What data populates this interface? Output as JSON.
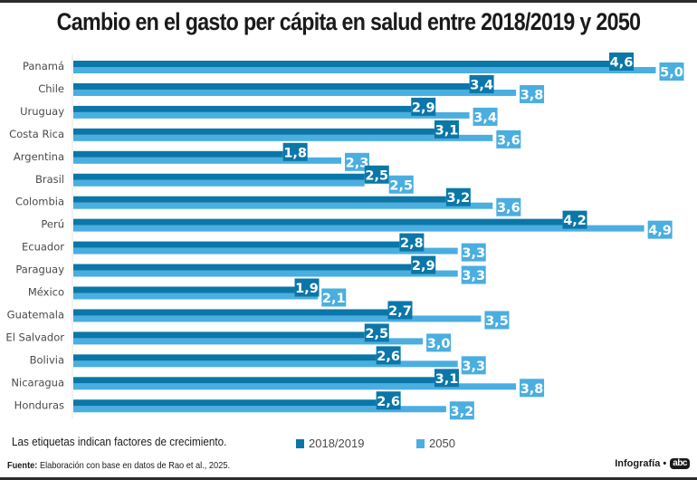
{
  "chart_data": {
    "type": "bar",
    "orientation": "horizontal",
    "title": "Cambio en el gasto per cápita en salud entre 2018/2019 y 2050",
    "categories": [
      "Panamá",
      "Chile",
      "Uruguay",
      "Costa Rica",
      "Argentina",
      "Brasil",
      "Colombia",
      "Perú",
      "Ecuador",
      "Paraguay",
      "México",
      "Guatemala",
      "El Salvador",
      "Bolivia",
      "Nicaragua",
      "Honduras"
    ],
    "series": [
      {
        "name": "2018/2019",
        "color": "#0a77a8",
        "values": [
          4.6,
          3.4,
          2.9,
          3.1,
          1.8,
          2.5,
          3.2,
          4.2,
          2.8,
          2.9,
          1.9,
          2.7,
          2.5,
          2.6,
          3.1,
          2.6
        ],
        "labels": [
          "4,6",
          "3,4",
          "2,9",
          "3,1",
          "1,8",
          "2,5",
          "3,2",
          "4,2",
          "2,8",
          "2,9",
          "1,9",
          "2,7",
          "2,5",
          "2,6",
          "3,1",
          "2,6"
        ]
      },
      {
        "name": "2050",
        "color": "#4aaee0",
        "values": [
          5.0,
          3.8,
          3.4,
          3.6,
          2.3,
          2.5,
          3.6,
          4.9,
          3.3,
          3.3,
          2.1,
          3.5,
          3.0,
          3.3,
          3.8,
          3.2
        ],
        "labels": [
          "5,0",
          "3,8",
          "3,4",
          "3,6",
          "2,3",
          "2,5",
          "3,6",
          "4,9",
          "3,3",
          "3,3",
          "2,1",
          "3,5",
          "3,0",
          "3,3",
          "3,8",
          "3,2"
        ]
      }
    ],
    "xlabel": "",
    "ylabel": "",
    "xlim": [
      0,
      5.0
    ],
    "grid": false,
    "legend": {
      "placement": "bottom",
      "entries": [
        "2018/2019",
        "2050"
      ]
    },
    "annotations": [
      "Las etiquetas indican factores de crecimiento."
    ]
  },
  "note": "Las etiquetas indican factores de crecimiento.",
  "source_label": "Fuente:",
  "source_text": " Elaboración con base en datos de Rao et al., 2025.",
  "credit": "Infografía •",
  "logo_text": "abc",
  "axis_color": "#e6e6e6"
}
